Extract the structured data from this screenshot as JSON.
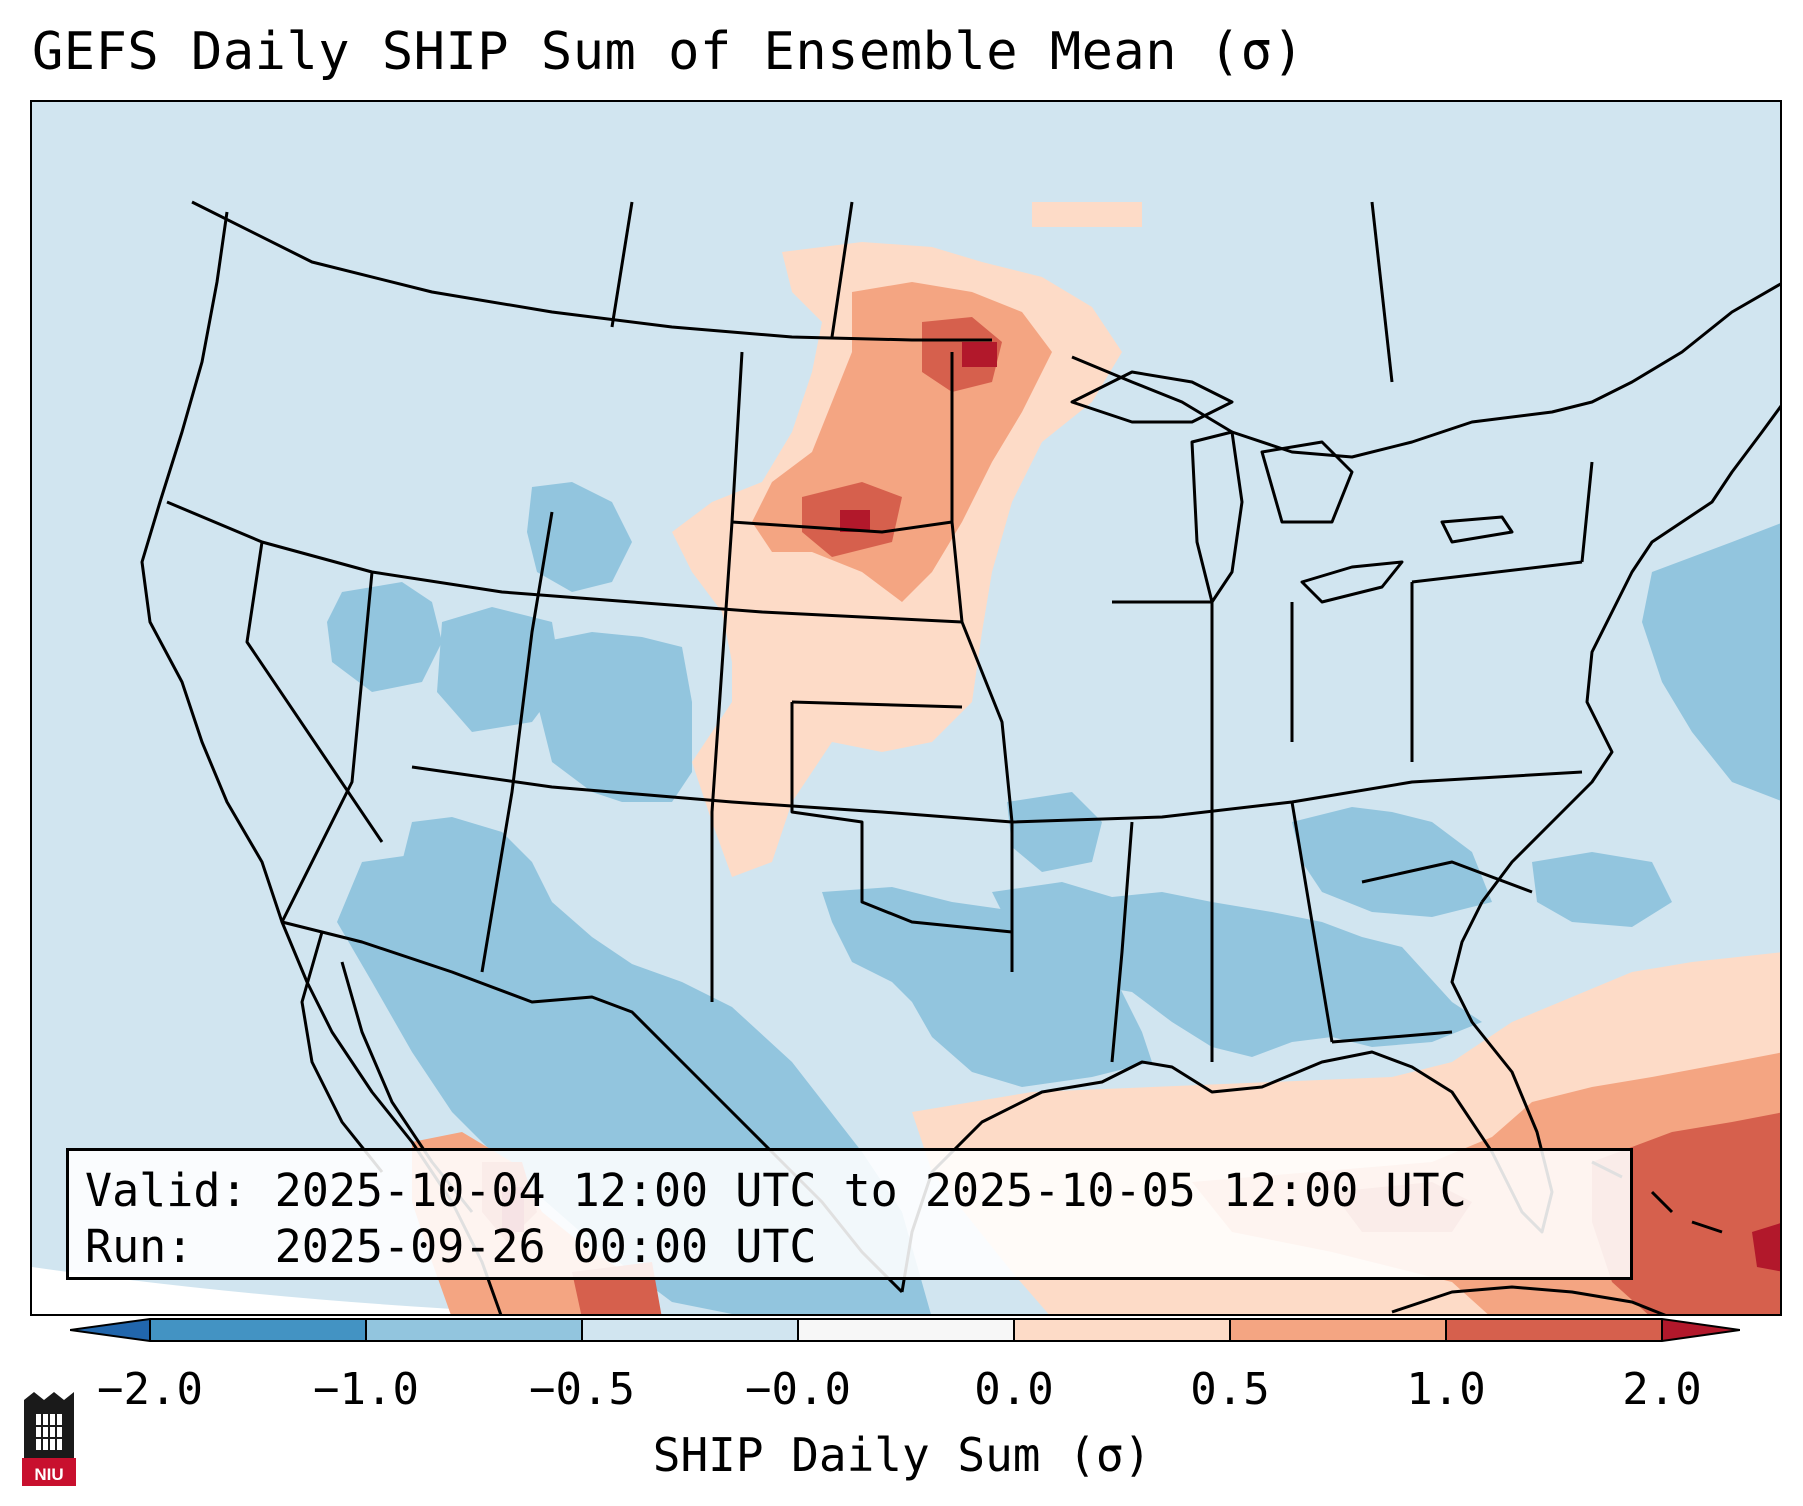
{
  "title": "GEFS Daily SHIP Sum of Ensemble Mean (σ)",
  "info": {
    "valid_label": "Valid:",
    "valid_value": "2025-10-04 12:00 UTC to 2025-10-05 12:00 UTC",
    "run_label": "Run:",
    "run_value": "2025-09-26 00:00 UTC"
  },
  "colorbar": {
    "label": "SHIP Daily Sum (σ)",
    "ticks": [
      "−2.0",
      "−1.0",
      "−0.5",
      "−0.0",
      "0.0",
      "0.5",
      "1.0",
      "2.0"
    ],
    "bins": [
      {
        "range": "< -2.0",
        "color": "#2166ac"
      },
      {
        "range": "-2.0 to -1.0",
        "color": "#4393c3"
      },
      {
        "range": "-1.0 to -0.5",
        "color": "#92c5de"
      },
      {
        "range": "-0.5 to -0.0",
        "color": "#d1e5f0"
      },
      {
        "range": "-0.0 to 0.0",
        "color": "#f7f7f7"
      },
      {
        "range": "0.0 to 0.5",
        "color": "#fddbc7"
      },
      {
        "range": "0.5 to 1.0",
        "color": "#f4a582"
      },
      {
        "range": "1.0 to 2.0",
        "color": "#d6604d"
      },
      {
        "range": "> 2.0",
        "color": "#b2182b"
      }
    ]
  },
  "logo": {
    "text": "NIU"
  },
  "map": {
    "projection": "lambert-conformal",
    "region": "CONUS",
    "features": [
      "coastlines",
      "country borders",
      "state borders",
      "great lakes"
    ]
  }
}
